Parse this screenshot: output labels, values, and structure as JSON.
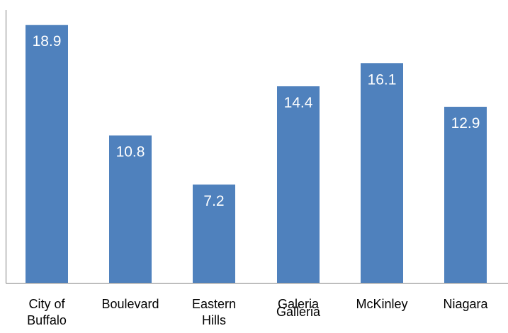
{
  "chart_data": {
    "type": "bar",
    "categories": [
      "City of Buffalo",
      "Boulevard",
      "Eastern Hills",
      "Galeria",
      "McKinley",
      "Niagara"
    ],
    "values": [
      18.9,
      10.8,
      7.2,
      14.4,
      16.1,
      12.9
    ],
    "data_labels": [
      "18.9",
      "10.8",
      "7.2",
      "14.4",
      "16.1",
      "12.9"
    ],
    "extra_category_label": "Galleria",
    "ylim": [
      0,
      20
    ],
    "grid": false,
    "legend": "none",
    "bar_color": "#4f81bd",
    "label_color": "#ffffff",
    "axis_color": "#7f7f7f"
  }
}
